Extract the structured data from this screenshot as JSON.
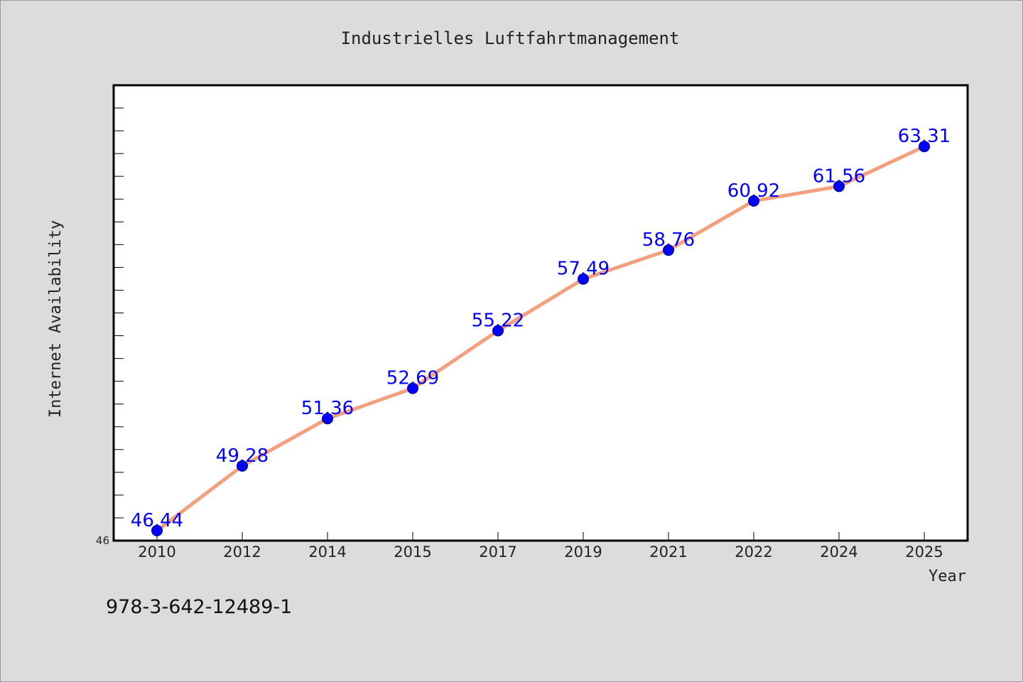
{
  "chart_data": {
    "type": "line",
    "title": "Industrielles Luftfahrtmanagement",
    "xlabel": "Year",
    "ylabel": "Internet Availability",
    "categories": [
      "2010",
      "2012",
      "2014",
      "2015",
      "2017",
      "2019",
      "2021",
      "2022",
      "2024",
      "2025"
    ],
    "series": [
      {
        "values": [
          46.44,
          49.28,
          51.36,
          52.69,
          55.22,
          57.49,
          58.76,
          60.92,
          61.56,
          63.31
        ]
      }
    ],
    "y_tick_labels": [
      "46"
    ],
    "ylim": [
      46,
      66
    ],
    "grid": false,
    "colors": {
      "line": "#f4a07e",
      "marker": "#0000ff",
      "data_label": "#0000ff",
      "background": "#dcdcdc",
      "plot_background": "#ffffff"
    }
  },
  "footer_note": "978-3-642-12489-1"
}
